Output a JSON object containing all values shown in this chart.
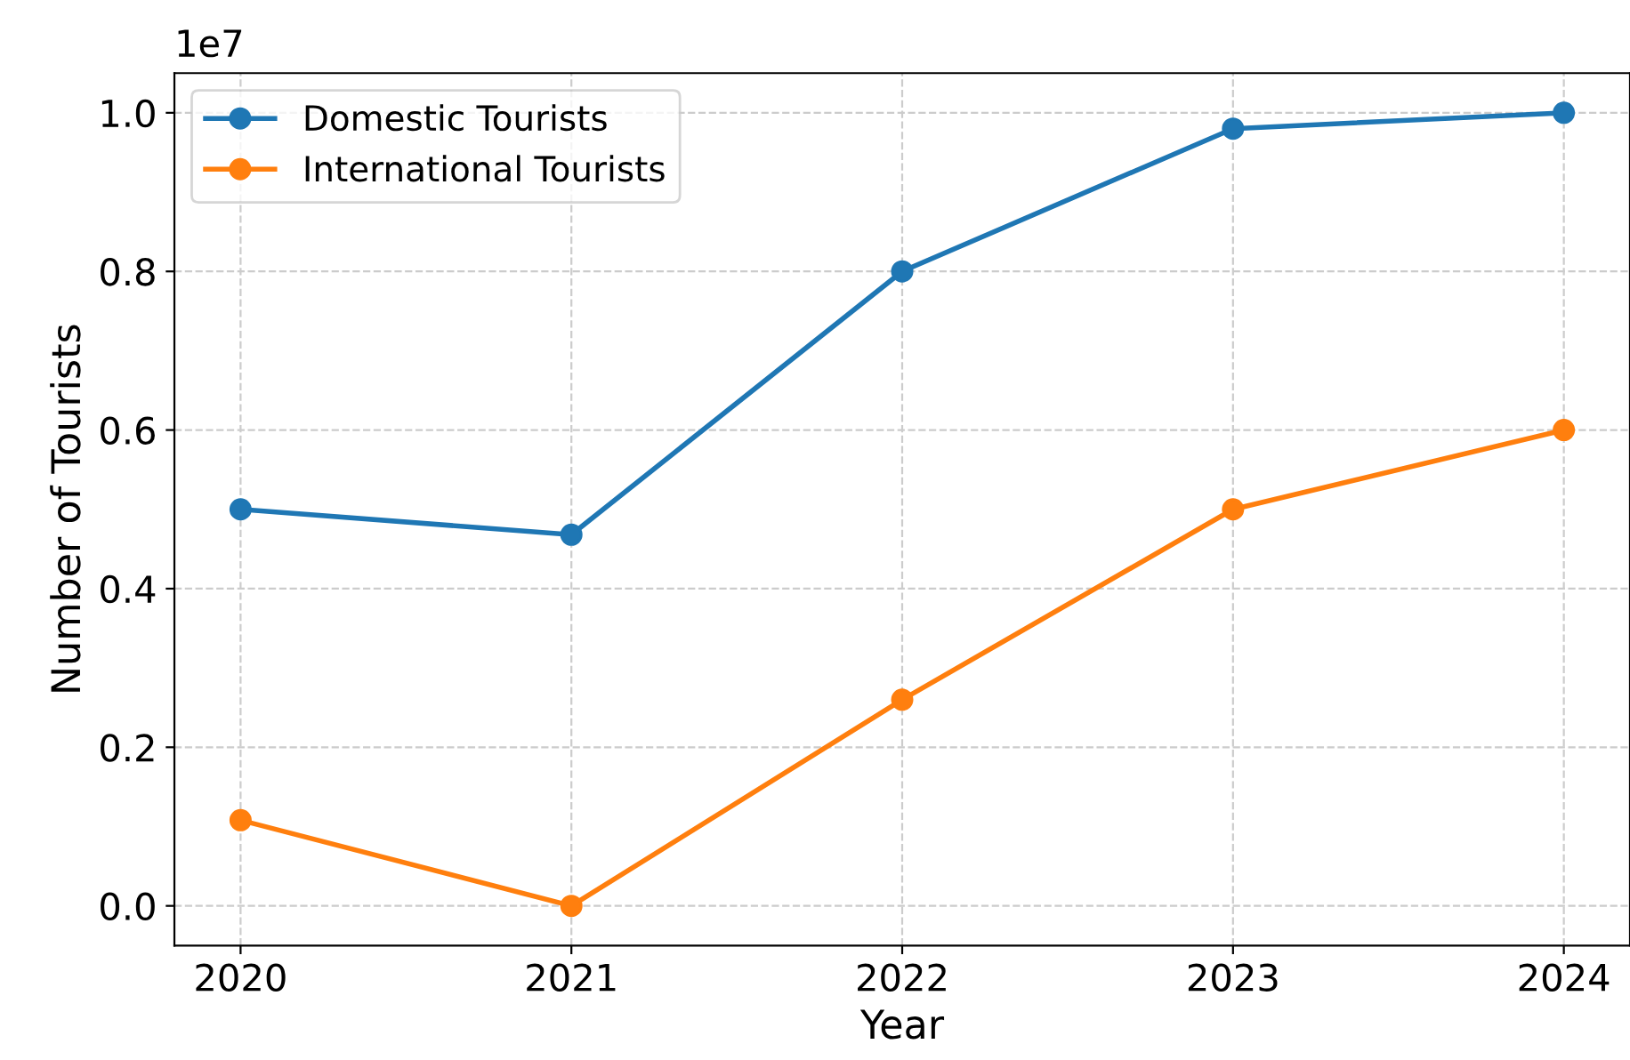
{
  "chart_data": {
    "type": "line",
    "xlabel": "Year",
    "ylabel": "Number of Tourists",
    "x": [
      2020,
      2021,
      2022,
      2023,
      2024
    ],
    "series": [
      {
        "name": "Domestic Tourists",
        "color": "#1f77b4",
        "values": [
          0.5,
          0.468,
          0.8,
          0.98,
          1.0
        ]
      },
      {
        "name": "International Tourists",
        "color": "#ff7f0e",
        "values": [
          0.108,
          0,
          0.26,
          0.5,
          0.6
        ]
      }
    ],
    "xlim": [
      2019.8,
      2024.2
    ],
    "xticks": [
      2020,
      2021,
      2022,
      2023,
      2024
    ],
    "ylim": [
      -0.05,
      1.05
    ],
    "yticks": [
      {
        "value": 0,
        "label": "0.0"
      },
      0.2,
      0.4,
      0.6,
      0.8,
      {
        "value": 1,
        "label": "1.0"
      }
    ],
    "annotations": [
      "1e7"
    ],
    "grid": true,
    "legend": "top left",
    "marker": "circle",
    "line_style": "solid"
  }
}
